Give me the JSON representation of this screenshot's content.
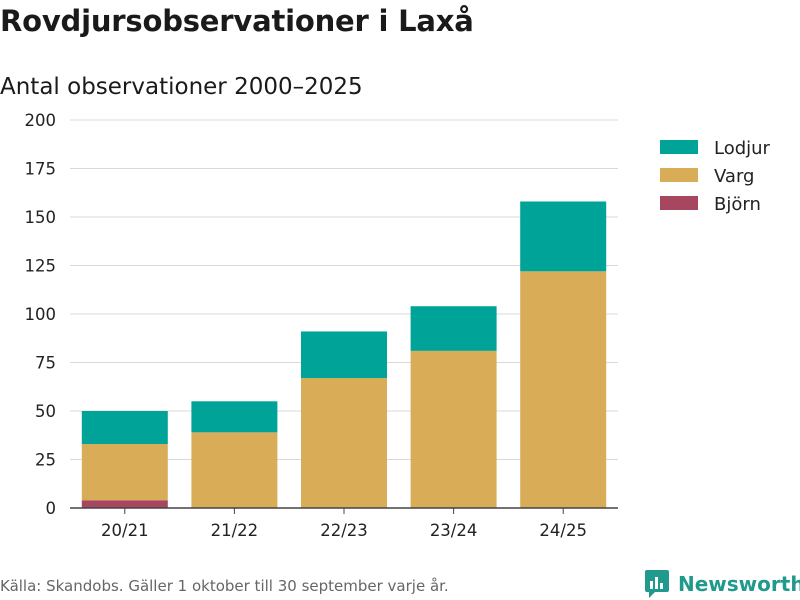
{
  "title": "Rovdjursobservationer i Laxå",
  "subtitle": "Antal observationer 2000–2025",
  "source": "Källa: Skandobs. Gäller 1 oktober till 30 september varje år.",
  "brand": {
    "name": "Newsworthy"
  },
  "colors": {
    "Lodjur": "#00a398",
    "Varg": "#d9ad58",
    "Björn": "#a6475f"
  },
  "chart_data": {
    "type": "bar",
    "stacked": true,
    "categories": [
      "20/21",
      "21/22",
      "22/23",
      "23/24",
      "24/25"
    ],
    "series": [
      {
        "name": "Björn",
        "values": [
          4,
          0,
          0,
          0,
          0
        ]
      },
      {
        "name": "Varg",
        "values": [
          29,
          39,
          67,
          81,
          122
        ]
      },
      {
        "name": "Lodjur",
        "values": [
          17,
          16,
          24,
          23,
          36
        ]
      }
    ],
    "legend": [
      "Lodjur",
      "Varg",
      "Björn"
    ],
    "ylim": [
      0,
      200
    ],
    "yticks": [
      0,
      25,
      50,
      75,
      100,
      125,
      150,
      175,
      200
    ],
    "title": "Rovdjursobservationer i Laxå",
    "xlabel": "",
    "ylabel": "",
    "grid": true,
    "legend_position": "top-right"
  }
}
